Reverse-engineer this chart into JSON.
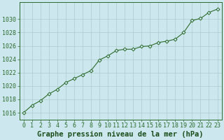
{
  "x": [
    0,
    1,
    2,
    3,
    4,
    5,
    6,
    7,
    8,
    9,
    10,
    11,
    12,
    13,
    14,
    15,
    16,
    17,
    18,
    19,
    20,
    21,
    22,
    23
  ],
  "y": [
    1016.0,
    1017.1,
    1017.8,
    1018.8,
    1019.5,
    1020.5,
    1021.1,
    1021.7,
    1022.3,
    1023.9,
    1024.5,
    1025.3,
    1025.5,
    1025.5,
    1025.9,
    1026.0,
    1026.5,
    1026.7,
    1027.0,
    1028.0,
    1029.8,
    1030.1,
    1031.0,
    1031.5
  ],
  "line_color": "#2d6a2d",
  "marker": "D",
  "marker_size": 2.5,
  "bg_color": "#cce8ee",
  "grid_color": "#aacccc",
  "xlabel": "Graphe pression niveau de la mer (hPa)",
  "ylabel_ticks": [
    1016,
    1018,
    1020,
    1022,
    1024,
    1026,
    1028,
    1030
  ],
  "ylim": [
    1015.0,
    1032.5
  ],
  "xlim": [
    -0.5,
    23.5
  ],
  "tick_label_color": "#1a4d1a",
  "label_fontsize": 7.0,
  "tick_fontsize": 6.0,
  "xlabel_color": "#1a4d1a",
  "xlabel_fontsize": 7.5,
  "xlabel_fontweight": "bold"
}
